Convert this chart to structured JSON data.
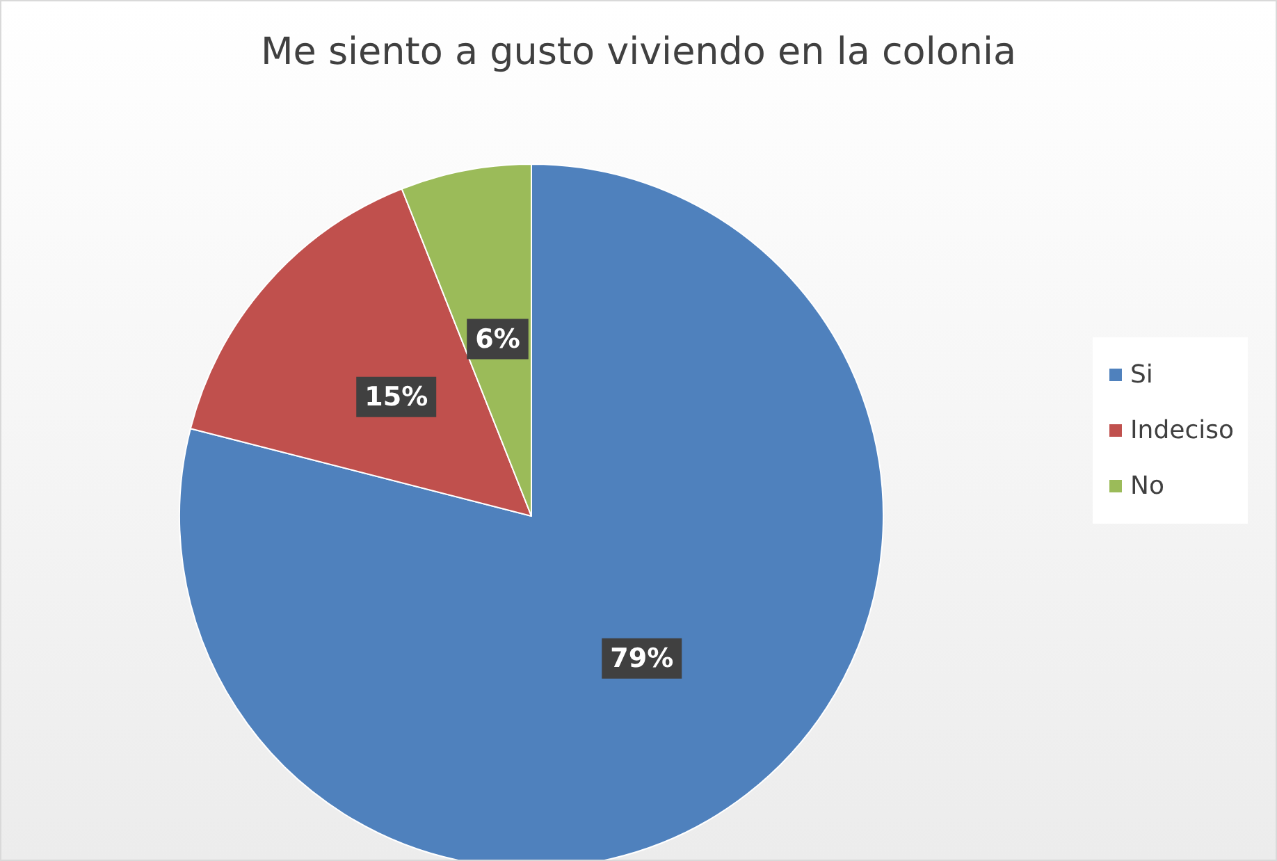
{
  "chart_data": {
    "type": "pie",
    "title": "Me siento a gusto viviendo en la colonia",
    "categories": [
      "Si",
      "Indeciso",
      "No"
    ],
    "values": [
      79,
      15,
      6
    ],
    "colors": [
      "#4f81bd",
      "#c0504d",
      "#9bbb59"
    ],
    "value_labels": [
      "79%",
      "15%",
      "6%"
    ],
    "legend": "right"
  }
}
